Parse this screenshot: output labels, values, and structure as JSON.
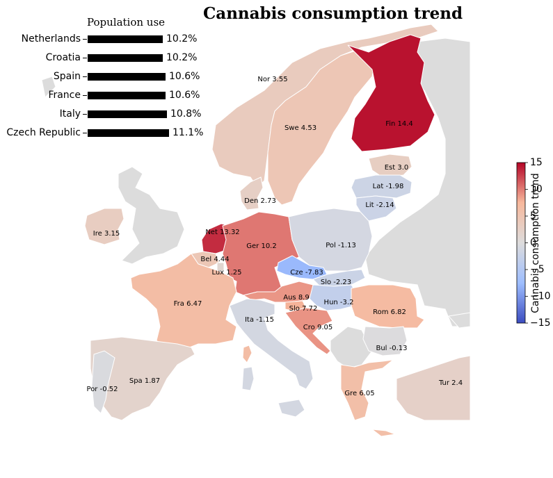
{
  "title": "Cannabis consumption trend",
  "inset": {
    "title": "Population use",
    "rows": [
      {
        "country": "Netherlands",
        "value": 10.2,
        "value_label": "10.2%"
      },
      {
        "country": "Croatia",
        "value": 10.2,
        "value_label": "10.2%"
      },
      {
        "country": "Spain",
        "value": 10.6,
        "value_label": "10.6%"
      },
      {
        "country": "France",
        "value": 10.6,
        "value_label": "10.6%"
      },
      {
        "country": "Italy",
        "value": 10.8,
        "value_label": "10.8%"
      },
      {
        "country": "Czech Republic",
        "value": 11.1,
        "value_label": "11.1%"
      }
    ]
  },
  "colorbar": {
    "label": "Cannabis consumption trend",
    "min": -15,
    "max": 15,
    "ticks": [
      "15",
      "10",
      "5",
      "0",
      "−5",
      "−10",
      "−15"
    ],
    "colors": [
      "#b40426",
      "#f7b89c",
      "#dddcdc",
      "#9ebeff",
      "#3b4cc0"
    ]
  },
  "regions": [
    {
      "code": "Nor",
      "label": "Nor 3.55",
      "value": 3.55
    },
    {
      "code": "Swe",
      "label": "Swe 4.53",
      "value": 4.53
    },
    {
      "code": "Fin",
      "label": "Fin 14.4",
      "value": 14.4
    },
    {
      "code": "Est",
      "label": "Est 3.0",
      "value": 3.0
    },
    {
      "code": "Lat",
      "label": "Lat -1.98",
      "value": -1.98
    },
    {
      "code": "Lit",
      "label": "Lit -2.14",
      "value": -2.14
    },
    {
      "code": "Den",
      "label": "Den 2.73",
      "value": 2.73
    },
    {
      "code": "Ire",
      "label": "Ire 3.15",
      "value": 3.15
    },
    {
      "code": "Net",
      "label": "Net 13.32",
      "value": 13.32
    },
    {
      "code": "Ger",
      "label": "Ger 10.2",
      "value": 10.2
    },
    {
      "code": "Pol",
      "label": "Pol -1.13",
      "value": -1.13
    },
    {
      "code": "Bel",
      "label": "Bel 4.44",
      "value": 4.44
    },
    {
      "code": "Lux",
      "label": "Lux 1.25",
      "value": 1.25
    },
    {
      "code": "Cze",
      "label": "Cze -7.83",
      "value": -7.83
    },
    {
      "code": "Slo",
      "label": "Slo -2.23",
      "value": -2.23
    },
    {
      "code": "Fra",
      "label": "Fra 6.47",
      "value": 6.47
    },
    {
      "code": "Aus",
      "label": "Aus 8.9",
      "value": 8.9
    },
    {
      "code": "Hun",
      "label": "Hun -3.2",
      "value": -3.2
    },
    {
      "code": "Slv",
      "label": "Slo 7.72",
      "value": 7.72
    },
    {
      "code": "Rom",
      "label": "Rom 6.82",
      "value": 6.82
    },
    {
      "code": "Ita",
      "label": "Ita -1.15",
      "value": -1.15
    },
    {
      "code": "Cro",
      "label": "Cro 9.05",
      "value": 9.05
    },
    {
      "code": "Bul",
      "label": "Bul -0.13",
      "value": -0.13
    },
    {
      "code": "Spa",
      "label": "Spa 1.87",
      "value": 1.87
    },
    {
      "code": "Por",
      "label": "Por -0.52",
      "value": -0.52
    },
    {
      "code": "Gre",
      "label": "Gre 6.05",
      "value": 6.05
    },
    {
      "code": "Tur",
      "label": "Tur 2.4",
      "value": 2.4
    }
  ]
}
